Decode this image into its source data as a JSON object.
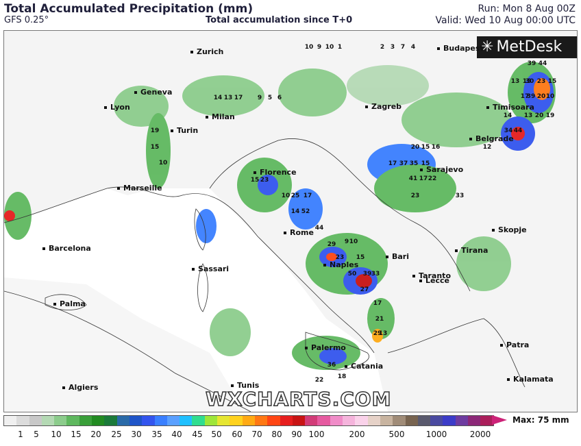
{
  "header": {
    "title": "Total Accumulated Precipitation (mm)",
    "model": "GFS 0.25°",
    "subtitle": "Total accumulation since T+0",
    "run": "Run: Mon 8 Aug 00Z",
    "valid": "Valid: Wed 10 Aug 00:00 UTC"
  },
  "logo": "MetDesk",
  "watermark": "WXCHARTS.COM",
  "cities": [
    "Zurich",
    "Budapest",
    "Geneva",
    "Lyon",
    "Milan",
    "Zagreb",
    "Timisoara",
    "Turin",
    "Belgrade",
    "Sarajevo",
    "Florence",
    "Marseille",
    "Skopje",
    "Rome",
    "Barcelona",
    "Tirana",
    "Bari",
    "Naples",
    "Sassari",
    "Taranto",
    "Lecce",
    "Palma",
    "Palermo",
    "Catania",
    "Patra",
    "Kalamata",
    "Tunis",
    "Algiers"
  ],
  "legend": {
    "max": "Max: 75 mm",
    "ticks": [
      "1",
      "5",
      "10",
      "15",
      "20",
      "25",
      "30",
      "35",
      "40",
      "45",
      "50",
      "60",
      "70",
      "80",
      "90",
      "100",
      "200",
      "500",
      "1000",
      "2000"
    ],
    "colors": [
      "#f0f0f0",
      "#dcdcdc",
      "#c8c8c8",
      "#b4d9b4",
      "#8ccc8c",
      "#5fb85f",
      "#3a9f3a",
      "#228b22",
      "#1b7a3a",
      "#2a6aa8",
      "#1f55c8",
      "#3355ee",
      "#3a7fff",
      "#5aa0ff",
      "#20c0ff",
      "#30dd90",
      "#9ee63a",
      "#e6e632",
      "#ffd21e",
      "#ffaa14",
      "#ff7814",
      "#ff4614",
      "#e61e1e",
      "#c81414",
      "#d23c78",
      "#e65aa0",
      "#f08cc8",
      "#f5b4dc",
      "#fad2ea",
      "#e6d2c8",
      "#c8b4a0",
      "#a08c78",
      "#786450",
      "#5a5a6e",
      "#4a4aa0",
      "#3c3cc8",
      "#6e3ca0",
      "#8c2878",
      "#aa1e5a"
    ]
  },
  "precip_labels": [
    {
      "t": "10"
    },
    {
      "t": "9"
    },
    {
      "t": "10"
    },
    {
      "t": "1"
    },
    {
      "t": "2"
    },
    {
      "t": "3"
    },
    {
      "t": "7"
    },
    {
      "t": "4"
    },
    {
      "t": "39"
    },
    {
      "t": "44"
    },
    {
      "t": "13"
    },
    {
      "t": "15"
    },
    {
      "t": "30"
    },
    {
      "t": "23"
    },
    {
      "t": "15"
    },
    {
      "t": "17"
    },
    {
      "t": "39"
    },
    {
      "t": "20"
    },
    {
      "t": "10"
    },
    {
      "t": "14"
    },
    {
      "t": "13"
    },
    {
      "t": "20"
    },
    {
      "t": "19"
    },
    {
      "t": "34"
    },
    {
      "t": "44"
    },
    {
      "t": "14"
    },
    {
      "t": "13"
    },
    {
      "t": "17"
    },
    {
      "t": "9"
    },
    {
      "t": "5"
    },
    {
      "t": "6"
    },
    {
      "t": "19"
    },
    {
      "t": "15"
    },
    {
      "t": "10"
    },
    {
      "t": "20"
    },
    {
      "t": "15"
    },
    {
      "t": "16"
    },
    {
      "t": "17"
    },
    {
      "t": "37"
    },
    {
      "t": "35"
    },
    {
      "t": "15"
    },
    {
      "t": "15"
    },
    {
      "t": "23"
    },
    {
      "t": "41"
    },
    {
      "t": "17"
    },
    {
      "t": "22"
    },
    {
      "t": "23"
    },
    {
      "t": "10"
    },
    {
      "t": "25"
    },
    {
      "t": "17"
    },
    {
      "t": "14"
    },
    {
      "t": "52"
    },
    {
      "t": "44"
    },
    {
      "t": "29"
    },
    {
      "t": "9"
    },
    {
      "t": "10"
    },
    {
      "t": "23"
    },
    {
      "t": "15"
    },
    {
      "t": "50"
    },
    {
      "t": "39"
    },
    {
      "t": "33"
    },
    {
      "t": "27"
    },
    {
      "t": "17"
    },
    {
      "t": "21"
    },
    {
      "t": "29"
    },
    {
      "t": "36"
    },
    {
      "t": "18"
    },
    {
      "t": "22"
    },
    {
      "t": "13"
    },
    {
      "t": "33"
    },
    {
      "t": "12"
    }
  ]
}
